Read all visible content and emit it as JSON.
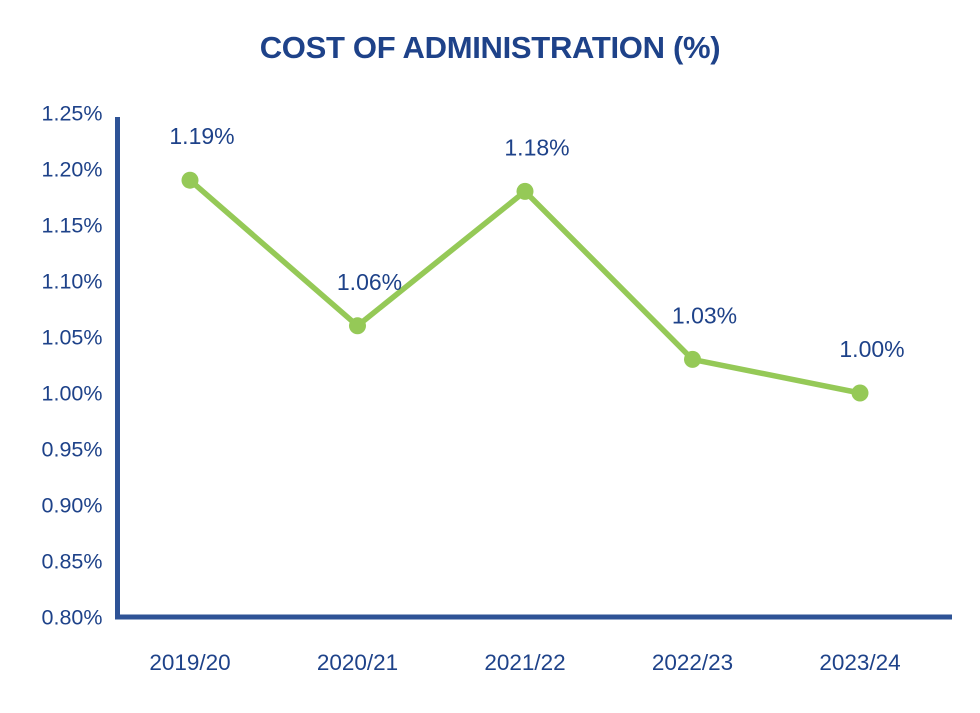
{
  "chart_data": {
    "type": "line",
    "title": "COST OF ADMINISTRATION (%)",
    "categories": [
      "2019/20",
      "2020/21",
      "2021/22",
      "2022/23",
      "2023/24"
    ],
    "values": [
      1.19,
      1.06,
      1.18,
      1.03,
      1.0
    ],
    "data_labels": [
      "1.19%",
      "1.06%",
      "1.18%",
      "1.03%",
      "1.00%"
    ],
    "y_ticks": [
      "1.25%",
      "1.20%",
      "1.15%",
      "1.10%",
      "1.05%",
      "1.00%",
      "0.95%",
      "0.90%",
      "0.85%",
      "0.80%"
    ],
    "ylim": [
      0.8,
      1.25
    ],
    "y_tick_step": 0.05,
    "xlabel": "",
    "ylabel": "",
    "grid": false,
    "legend": "none",
    "colors": {
      "line": "#95C957",
      "marker": "#95C957",
      "text": "#1E4289",
      "axis": "#2E5396",
      "background": "#FFFFFF"
    }
  }
}
